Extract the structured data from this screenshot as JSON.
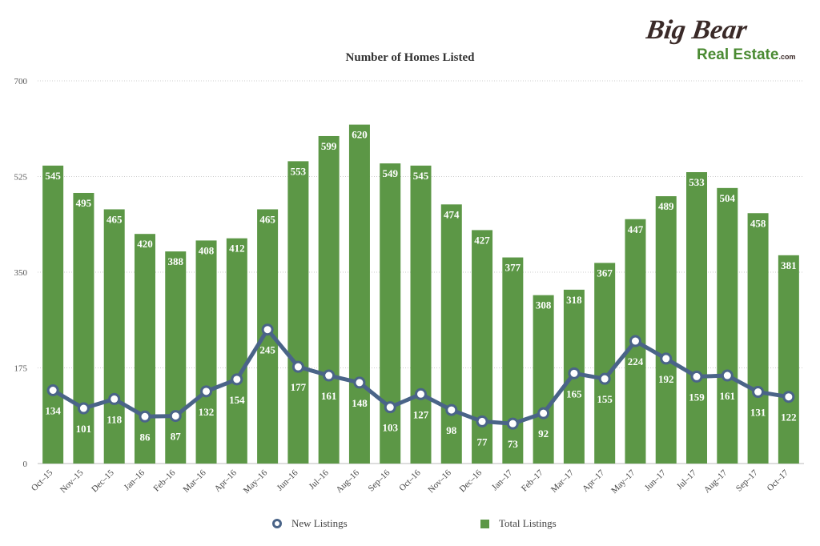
{
  "logo": {
    "line1": "Big Bear",
    "line2": "Real Estate",
    "suffix": ".com"
  },
  "colors": {
    "bar": "#5c9746",
    "line": "#4a6488",
    "grid": "#cccccc",
    "logo_dark": "#3a2a28",
    "logo_green": "#4a8a32"
  },
  "chart_data": {
    "type": "bar",
    "title": "Number of Homes Listed",
    "xlabel": "",
    "ylabel": "",
    "ylim": [
      0,
      700
    ],
    "yticks": [
      0,
      175,
      350,
      525,
      700
    ],
    "grid": true,
    "legend_position": "bottom",
    "categories": [
      "Oct–15",
      "Nov–15",
      "Dec–15",
      "Jan–16",
      "Feb–16",
      "Mar–16",
      "Apr–16",
      "May–16",
      "Jun–16",
      "Jul–16",
      "Aug–16",
      "Sep–16",
      "Oct–16",
      "Nov–16",
      "Dec–16",
      "Jan–17",
      "Feb–17",
      "Mar–17",
      "Apr–17",
      "May–17",
      "Jun–17",
      "Jul–17",
      "Aug–17",
      "Sep–17",
      "Oct–17"
    ],
    "series": [
      {
        "name": "Total Listings",
        "kind": "bar",
        "values": [
          545,
          495,
          465,
          420,
          388,
          408,
          412,
          465,
          553,
          599,
          620,
          549,
          545,
          474,
          427,
          377,
          308,
          318,
          367,
          447,
          489,
          533,
          504,
          458,
          381
        ]
      },
      {
        "name": "New Listings",
        "kind": "line",
        "values": [
          134,
          101,
          118,
          86,
          87,
          132,
          154,
          245,
          177,
          161,
          148,
          103,
          127,
          98,
          77,
          73,
          92,
          165,
          155,
          224,
          192,
          159,
          161,
          131,
          122
        ]
      }
    ]
  }
}
